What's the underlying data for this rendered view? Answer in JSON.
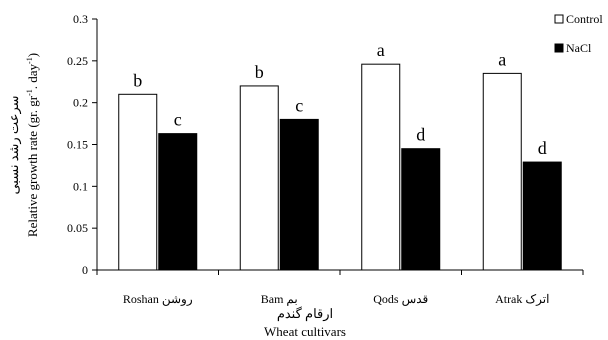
{
  "chart_data": {
    "type": "bar",
    "categories": [
      "Roshan روشن",
      "Bam بم",
      "Qods قدس",
      "Atrak اترک"
    ],
    "series": [
      {
        "name": "Control",
        "color": "#ffffff",
        "values": [
          0.21,
          0.22,
          0.246,
          0.235
        ],
        "letters": [
          "b",
          "b",
          "a",
          "a"
        ]
      },
      {
        "name": "NaCl",
        "color": "#000000",
        "values": [
          0.163,
          0.18,
          0.145,
          0.129
        ],
        "letters": [
          "c",
          "c",
          "d",
          "d"
        ]
      }
    ],
    "yticks": [
      "0",
      "0.05",
      "0.1",
      "0.15",
      "0.2",
      "0.25",
      "0.3"
    ],
    "ylim": [
      0,
      0.3
    ],
    "ylabel_fa": "سرعت رشد نسبی",
    "ylabel_en": "Relative growth rate (gr. gr",
    "ylabel_en_sup1": "-1",
    "ylabel_en_mid": ". day",
    "ylabel_en_sup2": "-1",
    "ylabel_en_end": ")",
    "xlabel_fa": "ارقام گندم",
    "xlabel_en": "Wheat cultivars",
    "legend_position": "top-right",
    "grid": false
  }
}
